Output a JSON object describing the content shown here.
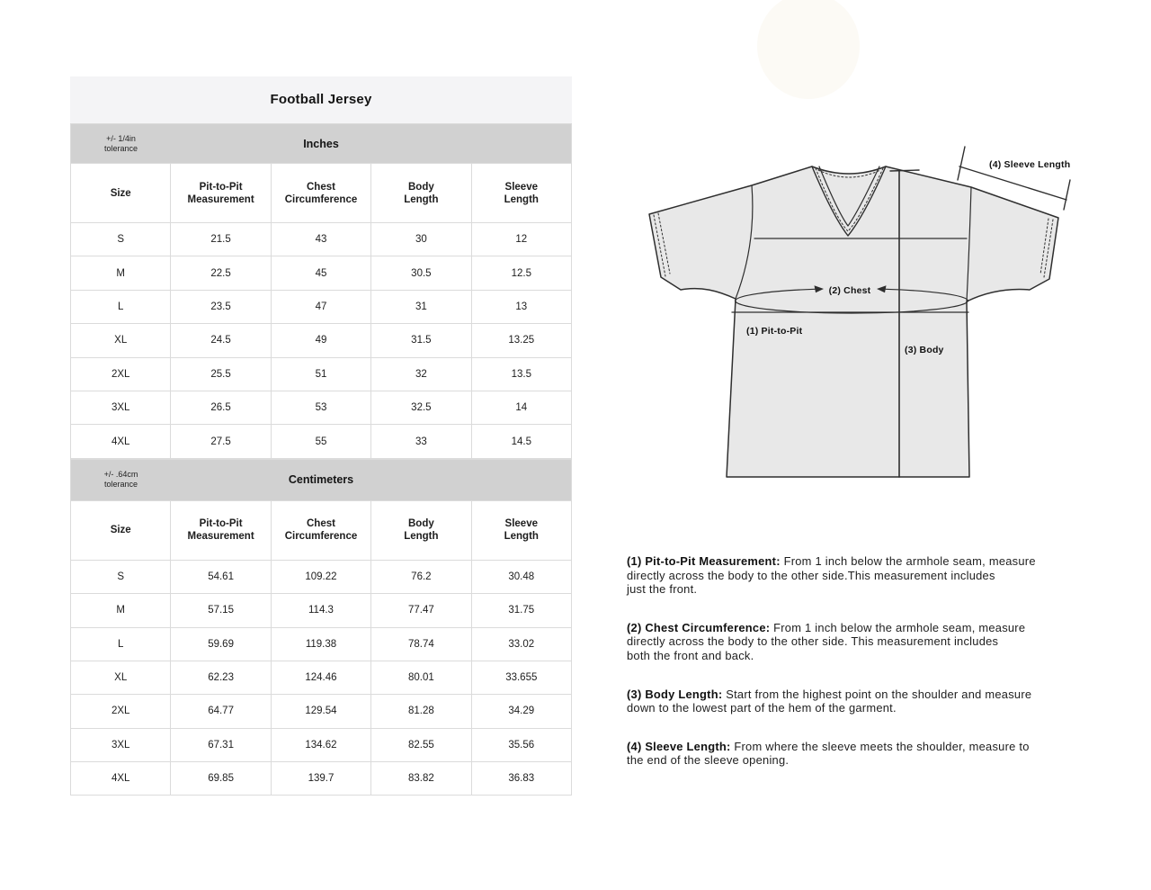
{
  "title": "Football Jersey",
  "colors": {
    "title_bar_bg": "#f4f4f6",
    "unit_band_bg": "#d1d1d1",
    "cell_border": "#dbdbdb",
    "jersey_fill": "#e8e8e8",
    "line_color": "#2e2e2e"
  },
  "tables": [
    {
      "unit_label": "Inches",
      "tolerance": "+/- 1/4in\ntolerance",
      "columns": [
        "Size",
        "Pit-to-Pit\nMeasurement",
        "Chest\nCircumference",
        "Body\nLength",
        "Sleeve\nLength"
      ],
      "rows": [
        [
          "S",
          "21.5",
          "43",
          "30",
          "12"
        ],
        [
          "M",
          "22.5",
          "45",
          "30.5",
          "12.5"
        ],
        [
          "L",
          "23.5",
          "47",
          "31",
          "13"
        ],
        [
          "XL",
          "24.5",
          "49",
          "31.5",
          "13.25"
        ],
        [
          "2XL",
          "25.5",
          "51",
          "32",
          "13.5"
        ],
        [
          "3XL",
          "26.5",
          "53",
          "32.5",
          "14"
        ],
        [
          "4XL",
          "27.5",
          "55",
          "33",
          "14.5"
        ]
      ]
    },
    {
      "unit_label": "Centimeters",
      "tolerance": "+/- .64cm\ntolerance",
      "columns": [
        "Size",
        "Pit-to-Pit\nMeasurement",
        "Chest\nCircumference",
        "Body\nLength",
        "Sleeve\nLength"
      ],
      "rows": [
        [
          "S",
          "54.61",
          "109.22",
          "76.2",
          "30.48"
        ],
        [
          "M",
          "57.15",
          "114.3",
          "77.47",
          "31.75"
        ],
        [
          "L",
          "59.69",
          "119.38",
          "78.74",
          "33.02"
        ],
        [
          "XL",
          "62.23",
          "124.46",
          "80.01",
          "33.655"
        ],
        [
          "2XL",
          "64.77",
          "129.54",
          "81.28",
          "34.29"
        ],
        [
          "3XL",
          "67.31",
          "134.62",
          "82.55",
          "35.56"
        ],
        [
          "4XL",
          "69.85",
          "139.7",
          "83.82",
          "36.83"
        ]
      ]
    }
  ],
  "diagram": {
    "labels": {
      "pit": "(1) Pit-to-Pit",
      "chest": "(2) Chest",
      "body": "(3) Body",
      "sleeve": "(4) Sleeve Length"
    }
  },
  "notes": [
    {
      "title": "(1) Pit-to-Pit Measurement:",
      "body": " From 1 inch below the armhole seam, measure\ndirectly across the body to the other side.This measurement includes\njust the front."
    },
    {
      "title": "(2) Chest Circumference:",
      "body": " From 1 inch below the armhole seam, measure\ndirectly across the body to the other side. This measurement includes\nboth the front and back."
    },
    {
      "title": "(3) Body Length:",
      "body": " Start from the highest point on the shoulder and measure\ndown to the lowest part of the hem of the garment."
    },
    {
      "title": "(4) Sleeve Length:",
      "body": " From where the sleeve meets the shoulder, measure to\nthe end of the sleeve opening."
    }
  ]
}
